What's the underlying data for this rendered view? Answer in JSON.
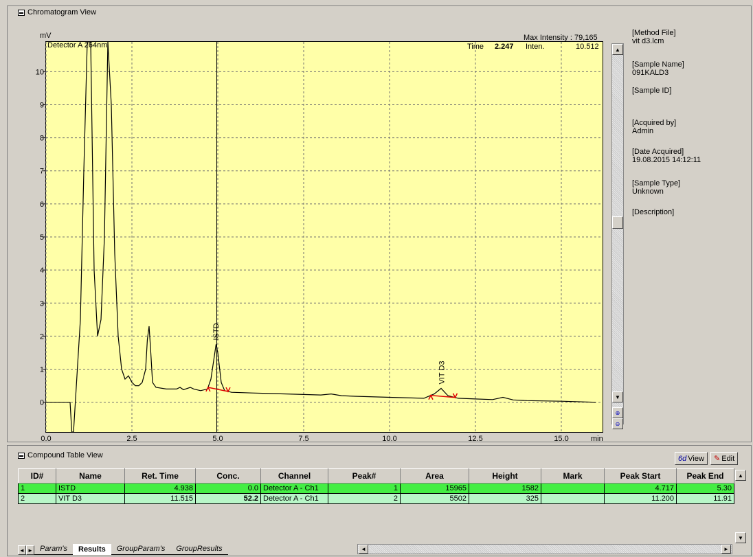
{
  "chromatogram_view": {
    "title": "Chromatogram View",
    "y_unit": "mV",
    "detector": "Detector A 264nm",
    "max_intensity_label": "Max Intensity : 79,165",
    "time_label": "Time",
    "time_value": "2.247",
    "inten_label": "Inten.",
    "inten_value": "10.512",
    "x_unit": "min",
    "zoom_in_icon": "zoom-in-icon",
    "zoom_out_icon": "zoom-out-icon"
  },
  "sample_info": {
    "method_file_label": "[Method File]",
    "method_file": "vit d3.lcm",
    "sample_name_label": "[Sample Name]",
    "sample_name": "091KALD3",
    "sample_id_label": "[Sample ID]",
    "acquired_by_label": "[Acquired by]",
    "acquired_by": "Admin",
    "date_acquired_label": "[Date Acquired]",
    "date_acquired": "19.08.2015 14:12:11",
    "sample_type_label": "[Sample Type]",
    "sample_type": "Unknown",
    "description_label": "[Description]"
  },
  "chart_data": {
    "type": "line",
    "title": "",
    "xlabel": "min",
    "ylabel": "mV",
    "xlim": [
      0.0,
      16.2
    ],
    "ylim": [
      -0.9,
      10.9
    ],
    "x_ticks": [
      "0.0",
      "2.5",
      "5.0",
      "7.5",
      "10.0",
      "12.5",
      "15.0"
    ],
    "y_ticks": [
      "0",
      "1",
      "2",
      "3",
      "4",
      "5",
      "6",
      "7",
      "8",
      "9",
      "10"
    ],
    "grid": true,
    "series": [
      {
        "x": [
          0.0,
          0.7,
          0.75,
          0.8,
          1.0,
          1.1,
          1.2,
          1.3,
          1.4,
          1.5,
          1.6,
          1.7,
          1.8,
          1.9,
          2.0,
          2.1,
          2.2,
          2.3,
          2.4,
          2.5,
          2.6,
          2.7,
          2.8,
          2.9,
          2.95,
          3.0,
          3.05,
          3.1,
          3.2,
          3.5,
          3.8,
          3.9,
          4.0,
          4.2,
          4.3,
          4.5,
          4.7,
          4.8,
          4.9,
          4.95,
          5.0,
          5.1,
          5.2,
          5.4,
          6.0,
          7.0,
          8.0,
          8.3,
          8.6,
          9.0,
          10.0,
          11.0,
          11.3,
          11.5,
          11.7,
          12.0,
          12.5,
          13.0,
          13.3,
          13.6,
          14.0,
          15.0,
          16.0
        ],
        "y": [
          0.0,
          0.0,
          -0.9,
          -0.9,
          2.5,
          7.0,
          10.9,
          10.9,
          4.0,
          2.0,
          2.5,
          5.0,
          10.9,
          9.0,
          4.5,
          2.0,
          1.0,
          0.7,
          0.8,
          0.6,
          0.5,
          0.5,
          0.6,
          1.0,
          1.9,
          2.3,
          1.5,
          0.6,
          0.45,
          0.4,
          0.4,
          0.45,
          0.38,
          0.45,
          0.4,
          0.35,
          0.4,
          0.7,
          1.4,
          1.75,
          1.5,
          0.6,
          0.35,
          0.3,
          0.28,
          0.25,
          0.22,
          0.25,
          0.2,
          0.18,
          0.15,
          0.12,
          0.25,
          0.42,
          0.2,
          0.12,
          0.1,
          0.08,
          0.15,
          0.07,
          0.05,
          0.03,
          0.0
        ]
      }
    ],
    "annotations": [
      {
        "label": "ISTD",
        "x": 4.938
      },
      {
        "label": "VIT D3",
        "x": 11.515
      }
    ],
    "cursor_x": 4.97,
    "integration_markers": [
      {
        "start": 4.717,
        "end": 5.3
      },
      {
        "start": 11.2,
        "end": 11.91
      }
    ]
  },
  "compound_table": {
    "title": "Compound Table View",
    "view_button": "View",
    "edit_button": "Edit",
    "headers": [
      "ID#",
      "Name",
      "Ret. Time",
      "Conc.",
      "Channel",
      "Peak#",
      "Area",
      "Height",
      "Mark",
      "Peak Start",
      "Peak End"
    ],
    "rows": [
      [
        "1",
        "ISTD",
        "4.938",
        "0.0",
        "Detector A - Ch1",
        "1",
        "15965",
        "1582",
        "",
        "4.717",
        "5.30"
      ],
      [
        "2",
        "VIT D3",
        "11.515",
        "52.2",
        "Detector A - Ch1",
        "2",
        "5502",
        "325",
        "",
        "11.200",
        "11.91"
      ]
    ],
    "tabs": [
      "Param's",
      "Results",
      "GroupParam's",
      "GroupResults"
    ],
    "active_tab": "Results"
  }
}
